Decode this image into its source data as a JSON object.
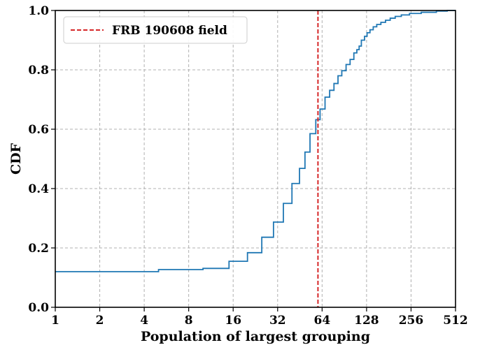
{
  "chart_data": {
    "type": "line",
    "xlabel": "Population of largest grouping",
    "ylabel": "CDF",
    "x_scale": "log2",
    "xlim": [
      1,
      512
    ],
    "ylim": [
      0,
      1.0
    ],
    "x_ticks": [
      1,
      2,
      4,
      8,
      16,
      32,
      64,
      128,
      256,
      512
    ],
    "x_tick_labels": [
      "1",
      "2",
      "4",
      "8",
      "16",
      "32",
      "64",
      "128",
      "256",
      "512"
    ],
    "y_ticks": [
      0,
      0.2,
      0.4,
      0.6,
      0.8,
      1.0
    ],
    "y_tick_labels": [
      "0.0",
      "0.2",
      "0.4",
      "0.6",
      "0.8",
      "1.0"
    ],
    "grid": true,
    "legend_position": "top-left",
    "series": [
      {
        "name": "",
        "color": "#1f77b4",
        "style": "step",
        "points": [
          [
            1,
            0.12
          ],
          [
            5,
            0.12
          ],
          [
            5,
            0.127
          ],
          [
            10,
            0.127
          ],
          [
            10,
            0.131
          ],
          [
            15,
            0.131
          ],
          [
            15,
            0.155
          ],
          [
            20,
            0.155
          ],
          [
            20,
            0.184
          ],
          [
            25,
            0.184
          ],
          [
            25,
            0.236
          ],
          [
            30,
            0.236
          ],
          [
            30,
            0.287
          ],
          [
            35,
            0.287
          ],
          [
            35,
            0.35
          ],
          [
            40,
            0.35
          ],
          [
            40,
            0.417
          ],
          [
            45,
            0.417
          ],
          [
            45,
            0.468
          ],
          [
            49,
            0.468
          ],
          [
            49,
            0.523
          ],
          [
            53,
            0.523
          ],
          [
            53,
            0.585
          ],
          [
            58,
            0.585
          ],
          [
            58,
            0.632
          ],
          [
            62,
            0.632
          ],
          [
            62,
            0.668
          ],
          [
            67,
            0.668
          ],
          [
            67,
            0.708
          ],
          [
            72,
            0.708
          ],
          [
            72,
            0.731
          ],
          [
            77,
            0.731
          ],
          [
            77,
            0.754
          ],
          [
            82,
            0.754
          ],
          [
            82,
            0.78
          ],
          [
            87,
            0.78
          ],
          [
            87,
            0.797
          ],
          [
            93,
            0.797
          ],
          [
            93,
            0.818
          ],
          [
            99,
            0.818
          ],
          [
            99,
            0.835
          ],
          [
            105,
            0.835
          ],
          [
            105,
            0.857
          ],
          [
            110,
            0.857
          ],
          [
            110,
            0.868
          ],
          [
            114,
            0.868
          ],
          [
            114,
            0.88
          ],
          [
            118,
            0.88
          ],
          [
            118,
            0.9
          ],
          [
            124,
            0.9
          ],
          [
            124,
            0.913
          ],
          [
            129,
            0.913
          ],
          [
            129,
            0.925
          ],
          [
            135,
            0.925
          ],
          [
            135,
            0.935
          ],
          [
            142,
            0.935
          ],
          [
            142,
            0.945
          ],
          [
            150,
            0.945
          ],
          [
            150,
            0.953
          ],
          [
            160,
            0.953
          ],
          [
            160,
            0.96
          ],
          [
            172,
            0.96
          ],
          [
            172,
            0.967
          ],
          [
            185,
            0.967
          ],
          [
            185,
            0.974
          ],
          [
            200,
            0.974
          ],
          [
            200,
            0.98
          ],
          [
            220,
            0.98
          ],
          [
            220,
            0.985
          ],
          [
            250,
            0.985
          ],
          [
            250,
            0.99
          ],
          [
            300,
            0.99
          ],
          [
            300,
            0.994
          ],
          [
            380,
            0.994
          ],
          [
            380,
            0.998
          ],
          [
            450,
            0.998
          ],
          [
            450,
            1.0
          ],
          [
            512,
            1.0
          ]
        ]
      }
    ],
    "vline": {
      "x": 60,
      "color": "#d62728",
      "style": "dashed",
      "label": "FRB 190608 field"
    }
  }
}
